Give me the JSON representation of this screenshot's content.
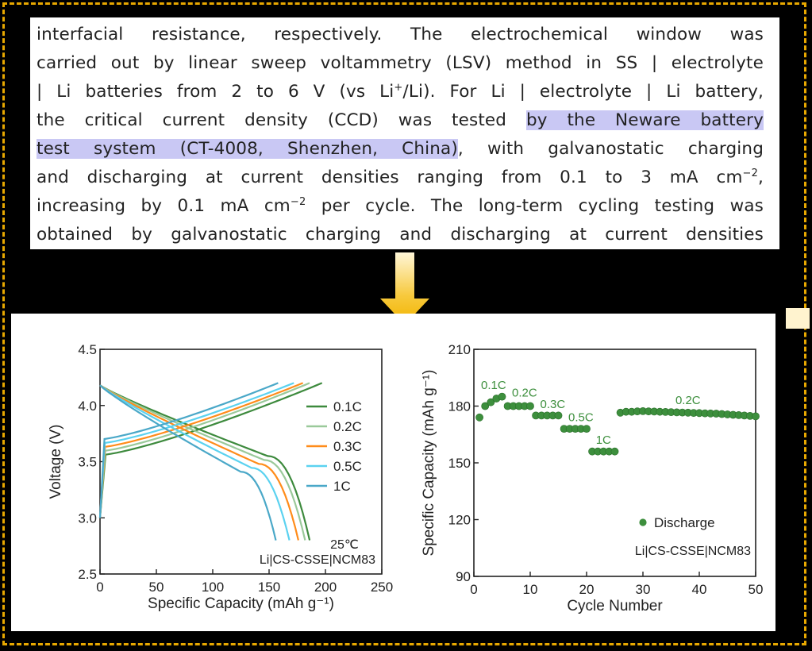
{
  "paragraph": {
    "line1": "interfacial resistance, respectively. The electrochemical window was",
    "line2": "carried out by linear sweep voltammetry (LSV) method in SS | electrolyte",
    "line3a": "| Li batteries from 2 to 6 V (vs Li",
    "line3sup": "+",
    "line3b": "/Li). For Li | electrolyte | Li battery,",
    "line4a": "the critical current density (CCD) was tested ",
    "line4hl": "by the Neware battery",
    "line5hl": "test system (CT-4008, Shenzhen, China)",
    "line5b": ", with galvanostatic charging",
    "line6a": "and discharging at current densities ranging from 0.1 to 3 mA cm",
    "line6sup": "−2",
    "line6b": ",",
    "line7a": "increasing by 0.1 mA cm",
    "line7sup": "−2",
    "line7b": " per cycle. The long-term cycling testing was",
    "line8": "obtained by galvanostatic charging and discharging at current densities"
  },
  "colors": {
    "highlight": "#c9c8f4",
    "arrow": "#f2b400",
    "frame": "#e8a800"
  },
  "chart_data": [
    {
      "type": "line",
      "xlabel": "Specific Capacity (mAh g⁻¹)",
      "ylabel": "Voltage (V)",
      "xlim": [
        0,
        250
      ],
      "ylim": [
        2.5,
        4.5
      ],
      "xticks": [
        0,
        50,
        100,
        150,
        200,
        250
      ],
      "yticks": [
        2.5,
        3.0,
        3.5,
        4.0,
        4.5
      ],
      "annotations": [
        "25℃",
        "Li|CS-CSSE|NCM83"
      ],
      "legend_position": "right",
      "series": [
        {
          "name": "0.1C",
          "color": "#3d8a3d",
          "charge_end": 197,
          "discharge_end": 186
        },
        {
          "name": "0.2C",
          "color": "#9ac99a",
          "charge_end": 186,
          "discharge_end": 182
        },
        {
          "name": "0.3C",
          "color": "#ff8c1a",
          "charge_end": 180,
          "discharge_end": 176
        },
        {
          "name": "0.5C",
          "color": "#5bd2f0",
          "charge_end": 172,
          "discharge_end": 168
        },
        {
          "name": "1C",
          "color": "#4aa8c8",
          "charge_end": 158,
          "discharge_end": 156
        }
      ]
    },
    {
      "type": "scatter",
      "xlabel": "Cycle Number",
      "ylabel": "Specific Capacity (mAh g⁻¹)",
      "xlim": [
        0,
        50
      ],
      "ylim": [
        90,
        210
      ],
      "xticks": [
        0,
        10,
        20,
        30,
        40,
        50
      ],
      "yticks": [
        90,
        120,
        150,
        180,
        210
      ],
      "legend": "Discharge",
      "annotation": "Li|CS-CSSE|NCM83",
      "color": "#3d8f3d",
      "rate_labels": [
        {
          "text": "0.1C",
          "x": 3.5,
          "y": 189
        },
        {
          "text": "0.2C",
          "x": 9,
          "y": 185
        },
        {
          "text": "0.3C",
          "x": 14,
          "y": 179
        },
        {
          "text": "0.5C",
          "x": 19,
          "y": 172
        },
        {
          "text": "1C",
          "x": 23,
          "y": 160
        },
        {
          "text": "0.2C",
          "x": 38,
          "y": 181
        }
      ],
      "x": [
        1,
        2,
        3,
        4,
        5,
        6,
        7,
        8,
        9,
        10,
        11,
        12,
        13,
        14,
        15,
        16,
        17,
        18,
        19,
        20,
        21,
        22,
        23,
        24,
        25,
        26,
        27,
        28,
        29,
        30,
        31,
        32,
        33,
        34,
        35,
        36,
        37,
        38,
        39,
        40,
        41,
        42,
        43,
        44,
        45,
        46,
        47,
        48,
        49,
        50
      ],
      "values": [
        174,
        180,
        182,
        184,
        185,
        180,
        180,
        180,
        180,
        180,
        175,
        175,
        175,
        175,
        175,
        168,
        168,
        168,
        168,
        168,
        156,
        156,
        156,
        156,
        156,
        176.5,
        177,
        177,
        177.2,
        177.3,
        177.2,
        177.1,
        177,
        176.9,
        176.8,
        176.7,
        176.6,
        176.5,
        176.4,
        176.3,
        176.2,
        176.1,
        176,
        175.8,
        175.6,
        175.4,
        175.2,
        175,
        174.8,
        174.6
      ]
    }
  ]
}
